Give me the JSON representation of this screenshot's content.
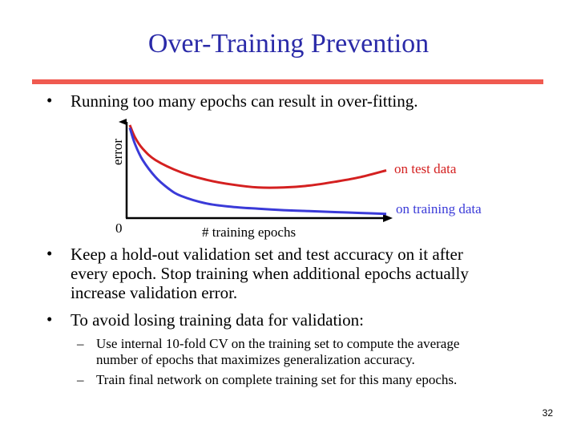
{
  "slide": {
    "title": "Over-Training Prevention",
    "bullets": [
      "Running too many epochs can result in over-fitting.",
      [
        "Keep a hold-out validation set and test accuracy on it after",
        "every epoch. Stop training when additional epochs actually",
        "increase validation error."
      ],
      "To avoid losing training data for validation:"
    ],
    "sub_bullets": [
      [
        "Use internal 10-fold CV on the training set to compute the average",
        "number of epochs that maximizes generalization accuracy."
      ],
      "Train final network on complete training set for this many epochs."
    ],
    "page_number": "32",
    "bullet_glyph": "•",
    "dash_glyph": "–"
  },
  "colors": {
    "title": "#2a2aa8",
    "rule": "#f05a50",
    "test_curve": "#d42020",
    "train_curve": "#3a3ad8"
  },
  "chart_data": {
    "type": "line",
    "xlabel": "# training epochs",
    "ylabel": "error",
    "origin_label": "0",
    "series": [
      {
        "name": "on test data",
        "x": [
          0,
          0.02,
          0.05,
          0.1,
          0.2,
          0.3,
          0.4,
          0.5,
          0.6,
          0.7,
          0.8,
          0.9,
          1.0
        ],
        "y": [
          0.95,
          0.82,
          0.7,
          0.58,
          0.45,
          0.37,
          0.32,
          0.29,
          0.29,
          0.31,
          0.35,
          0.4,
          0.47
        ]
      },
      {
        "name": "on training data",
        "x": [
          0,
          0.02,
          0.05,
          0.1,
          0.15,
          0.2,
          0.3,
          0.4,
          0.5,
          0.6,
          0.7,
          0.8,
          0.9,
          1.0
        ],
        "y": [
          0.92,
          0.75,
          0.58,
          0.4,
          0.28,
          0.2,
          0.12,
          0.085,
          0.065,
          0.05,
          0.04,
          0.03,
          0.02,
          0.01
        ]
      }
    ],
    "xlim": [
      0,
      1
    ],
    "ylim": [
      0,
      1
    ]
  }
}
